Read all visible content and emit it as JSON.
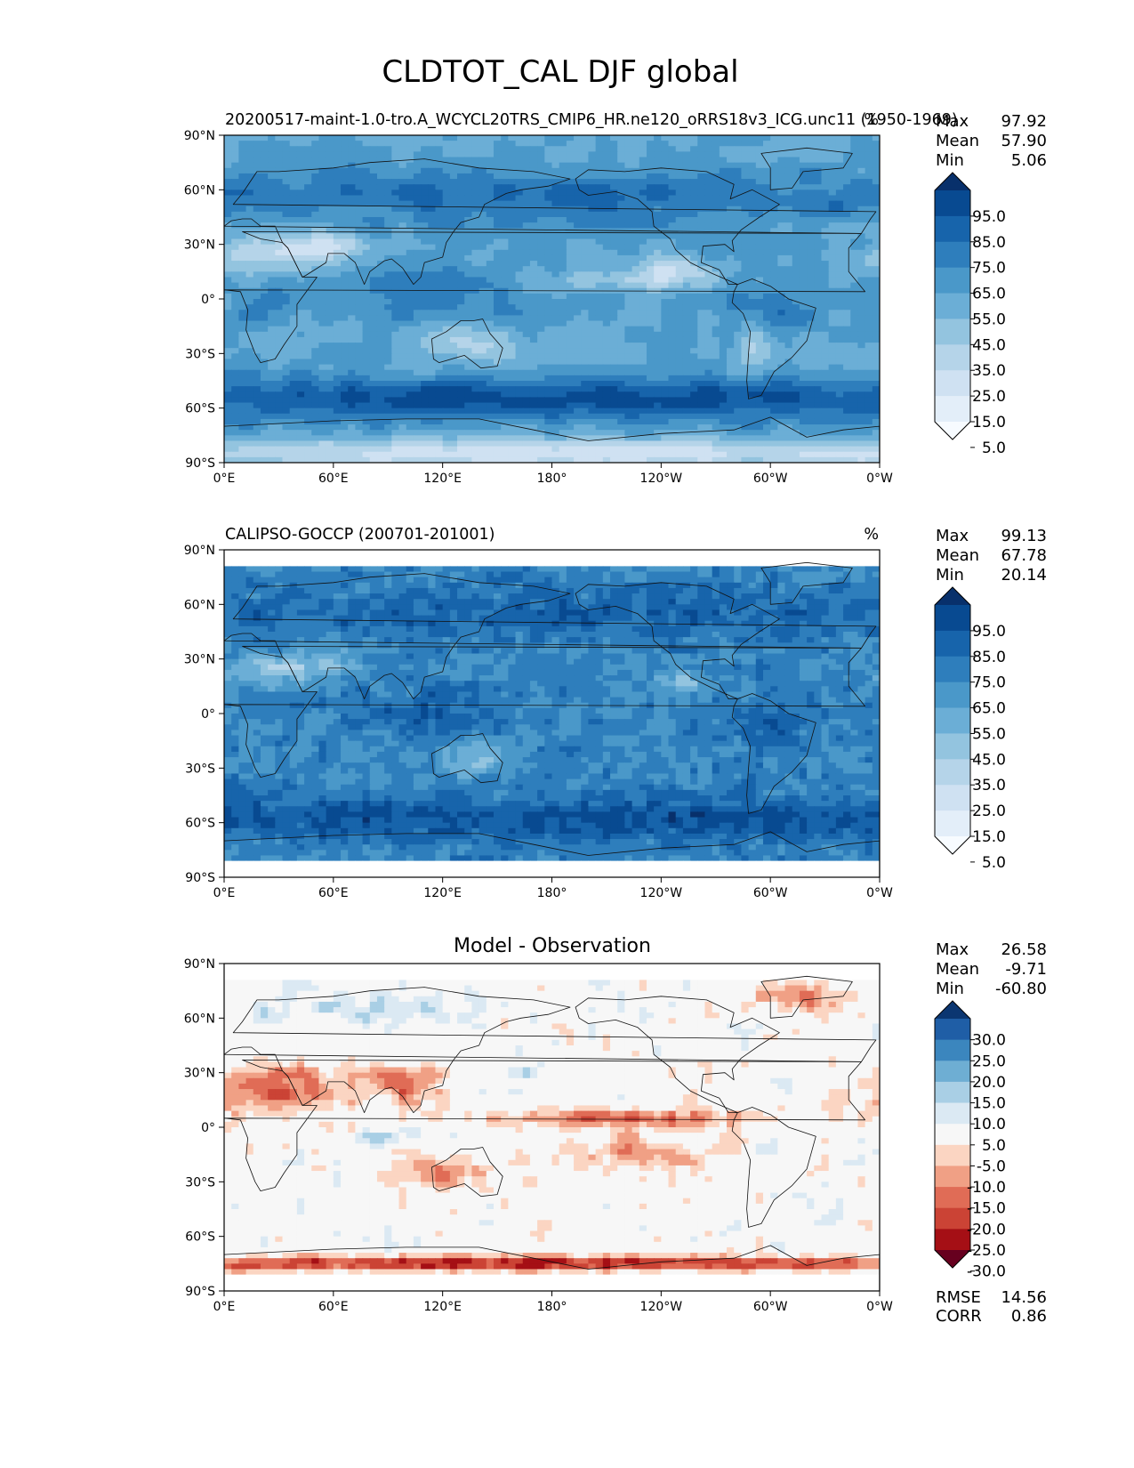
{
  "figure": {
    "title": "CLDTOT_CAL DJF global"
  },
  "axes": {
    "lat_ticks": [
      "90°N",
      "60°N",
      "30°N",
      "0°",
      "30°S",
      "60°S",
      "90°S"
    ],
    "lon_ticks": [
      "0°E",
      "60°E",
      "120°E",
      "180°",
      "120°W",
      "60°W",
      "0°W"
    ]
  },
  "panels": [
    {
      "id": "test",
      "title_left": "20200517-maint-1.0-tro.A_WCYCL20TRS_CMIP6_HR.ne120_oRRS18v3_ICG.unc11 (1950-1969)",
      "title_center": "",
      "units": "%",
      "stats": [
        {
          "label": "Max",
          "value": "97.92"
        },
        {
          "label": "Mean",
          "value": "57.90"
        },
        {
          "label": "Min",
          "value": "5.06"
        }
      ],
      "colorbar": {
        "labels": [
          "95.0",
          "85.0",
          "75.0",
          "65.0",
          "55.0",
          "45.0",
          "35.0",
          "25.0",
          "15.0",
          "5.0"
        ],
        "colors": [
          "#f7fbff",
          "#e3eef9",
          "#cfe1f2",
          "#b5d4e9",
          "#93c4df",
          "#6baed6",
          "#4a98c9",
          "#2e7ebc",
          "#1764ab",
          "#084a91",
          "#08306b"
        ]
      },
      "field": "model"
    },
    {
      "id": "ref",
      "title_left": "CALIPSO-GOCCP (200701-201001)",
      "title_center": "",
      "units": "%",
      "stats": [
        {
          "label": "Max",
          "value": "99.13"
        },
        {
          "label": "Mean",
          "value": "67.78"
        },
        {
          "label": "Min",
          "value": "20.14"
        }
      ],
      "colorbar": {
        "labels": [
          "95.0",
          "85.0",
          "75.0",
          "65.0",
          "55.0",
          "45.0",
          "35.0",
          "25.0",
          "15.0",
          "5.0"
        ],
        "colors": [
          "#f7fbff",
          "#e3eef9",
          "#cfe1f2",
          "#b5d4e9",
          "#93c4df",
          "#6baed6",
          "#4a98c9",
          "#2e7ebc",
          "#1764ab",
          "#084a91",
          "#08306b"
        ]
      },
      "field": "obs"
    },
    {
      "id": "diff",
      "title_left": "",
      "title_center": "Model - Observation",
      "units": "",
      "stats": [
        {
          "label": "Max",
          "value": "26.58"
        },
        {
          "label": "Mean",
          "value": "-9.71"
        },
        {
          "label": "Min",
          "value": "-60.80"
        }
      ],
      "colorbar": {
        "labels": [
          "30.0",
          "25.0",
          "20.0",
          "15.0",
          "10.0",
          "5.0",
          "-5.0",
          "-10.0",
          "-15.0",
          "-20.0",
          "-25.0",
          "-30.0"
        ],
        "colors": [
          "#67001f",
          "#a50f15",
          "#cb4335",
          "#e06c56",
          "#f0a085",
          "#fbd5c2",
          "#f7f7f7",
          "#dbe9f3",
          "#a9cfe5",
          "#6eaed3",
          "#3b86be",
          "#1f5ea6",
          "#0b3671"
        ]
      },
      "extra_stats": [
        {
          "label": "RMSE",
          "value": "14.56"
        },
        {
          "label": "CORR",
          "value": "0.86"
        }
      ],
      "field": "diff"
    }
  ]
}
